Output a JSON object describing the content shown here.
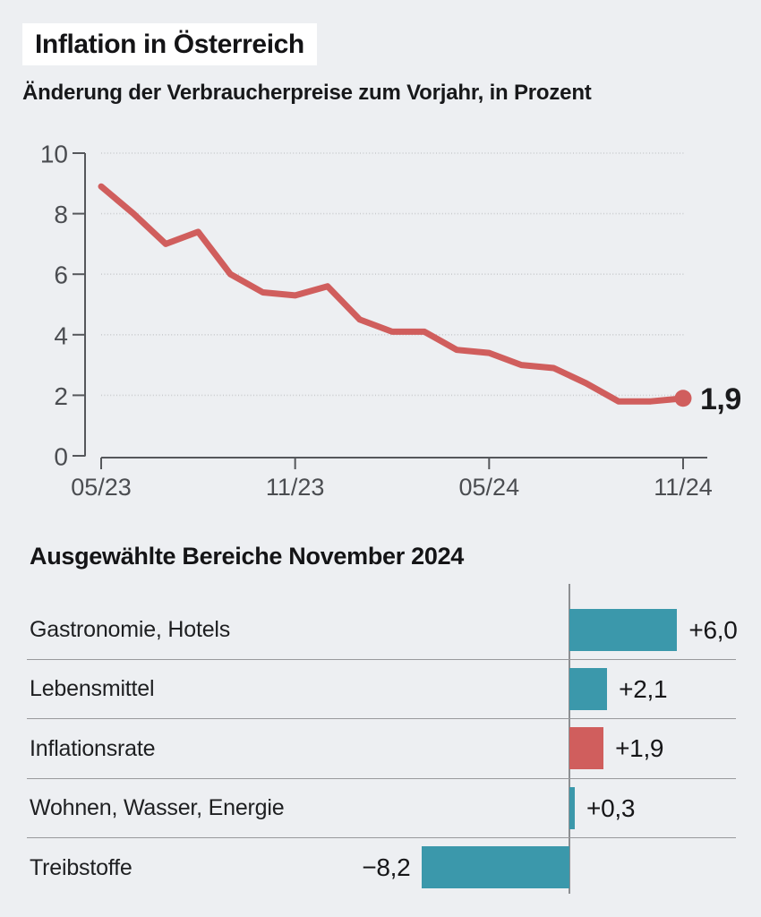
{
  "header": {
    "title": "Inflation in Österreich",
    "subtitle": "Änderung der Verbraucherpreise zum Vorjahr, in Prozent"
  },
  "bar_section": {
    "title": "Ausgewählte Bereiche November 2024"
  },
  "colors": {
    "background": "#edeff2",
    "line_red": "#d05e5d",
    "bar_teal": "#3b98ab",
    "bar_red": "#d05e5d",
    "axis": "#55575b",
    "grid": "#c9cbce",
    "tick_label": "#4b4d51",
    "value_label": "#161618",
    "separator": "#98999c"
  },
  "chart_data": [
    {
      "type": "line",
      "title": "Inflation in Österreich",
      "subtitle": "Änderung der Verbraucherpreise zum Vorjahr, in Prozent",
      "unit": "Prozent",
      "x": [
        "05/23",
        "06/23",
        "07/23",
        "08/23",
        "09/23",
        "10/23",
        "11/23",
        "12/23",
        "01/24",
        "02/24",
        "03/24",
        "04/24",
        "05/24",
        "06/24",
        "07/24",
        "08/24",
        "09/24",
        "10/24",
        "11/24"
      ],
      "values": [
        8.9,
        8.0,
        7.0,
        7.4,
        6.0,
        5.4,
        5.3,
        5.6,
        4.5,
        4.1,
        4.1,
        3.5,
        3.4,
        3.0,
        2.9,
        2.4,
        1.8,
        1.8,
        1.9
      ],
      "x_tick_labels": [
        "05/23",
        "11/23",
        "05/24",
        "11/24"
      ],
      "x_tick_indices": [
        0,
        6,
        12,
        18
      ],
      "yticks": [
        0,
        2,
        4,
        6,
        8,
        10
      ],
      "ytick_labels": [
        "0",
        "2",
        "4",
        "6",
        "8",
        "10"
      ],
      "ylim": [
        0,
        10
      ],
      "end_label": "1,9",
      "end_value": 1.9,
      "grid": true,
      "legend_position": "none"
    },
    {
      "type": "bar",
      "orientation": "horizontal",
      "title": "Ausgewählte Bereiche November 2024",
      "categories": [
        "Gastronomie, Hotels",
        "Lebensmittel",
        "Inflationsrate",
        "Wohnen, Wasser, Energie",
        "Treibstoffe"
      ],
      "values": [
        6.0,
        2.1,
        1.9,
        0.3,
        -8.2
      ],
      "value_labels": [
        "+6,0",
        "+2,1",
        "+1,9",
        "+0,3",
        "−8,2"
      ],
      "bar_colors": [
        "#3b98ab",
        "#3b98ab",
        "#d05e5d",
        "#3b98ab",
        "#3b98ab"
      ],
      "highlight_index": 2,
      "xlim": [
        -9,
        10
      ]
    }
  ]
}
